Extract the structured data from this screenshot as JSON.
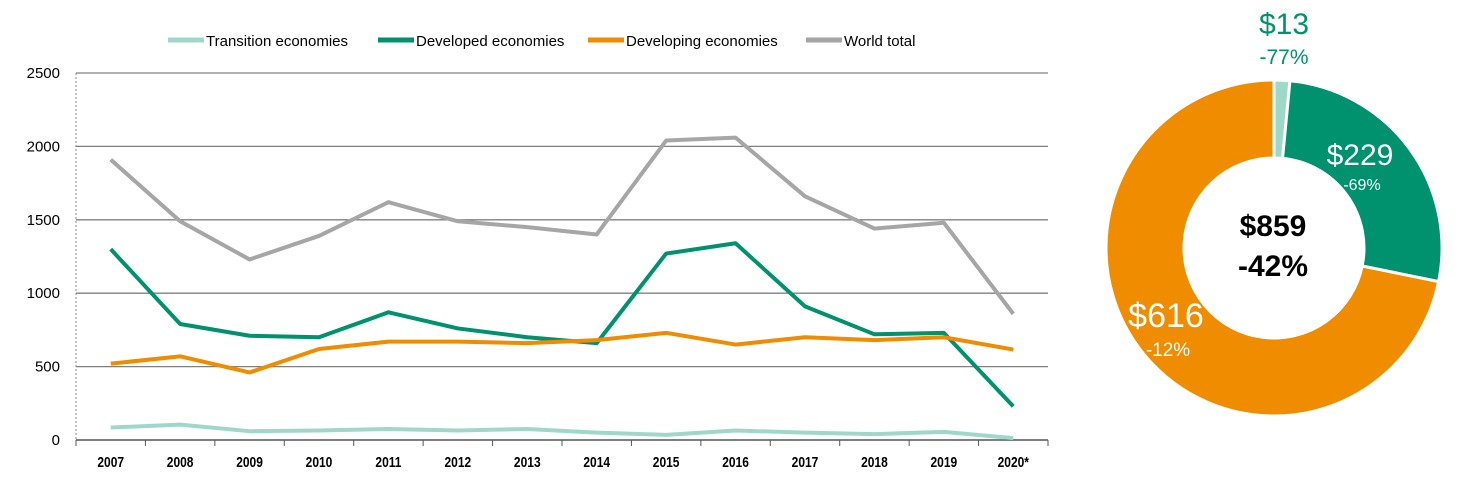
{
  "chart_data": [
    {
      "type": "line",
      "categories": [
        "2007",
        "2008",
        "2009",
        "2010",
        "2011",
        "2012",
        "2013",
        "2014",
        "2015",
        "2016",
        "2017",
        "2018",
        "2019",
        "2020*"
      ],
      "ylim": [
        0,
        2500
      ],
      "yticks": [
        "0",
        "500",
        "1000",
        "1500",
        "2000",
        "2500"
      ],
      "grid": true,
      "legend": "top",
      "series": [
        {
          "name": "Transition economies",
          "color": "#9fd8c8",
          "values": [
            85,
            105,
            60,
            65,
            75,
            65,
            75,
            50,
            35,
            65,
            50,
            40,
            55,
            13
          ]
        },
        {
          "name": "Developed economies",
          "color": "#00916e",
          "values": [
            1300,
            790,
            710,
            700,
            870,
            760,
            700,
            660,
            1270,
            1340,
            910,
            720,
            730,
            229
          ]
        },
        {
          "name": "Developing economies",
          "color": "#ef8c00",
          "values": [
            520,
            570,
            460,
            620,
            670,
            670,
            660,
            680,
            730,
            650,
            700,
            680,
            700,
            616
          ]
        },
        {
          "name": "World total",
          "color": "#a6a6a6",
          "values": [
            1910,
            1490,
            1230,
            1390,
            1620,
            1490,
            1450,
            1400,
            2040,
            2060,
            1660,
            1440,
            1480,
            859
          ]
        }
      ]
    },
    {
      "type": "pie",
      "center_label": {
        "value": "$859",
        "change": "-42%"
      },
      "slices": [
        {
          "value": 13,
          "label": "$13",
          "change": "-77%",
          "color": "#9fd8c8"
        },
        {
          "value": 229,
          "label": "$229",
          "change": "-69%",
          "color": "#00916e"
        },
        {
          "value": 616,
          "label": "$616",
          "change": "-12%",
          "color": "#ef8c00"
        }
      ]
    }
  ]
}
